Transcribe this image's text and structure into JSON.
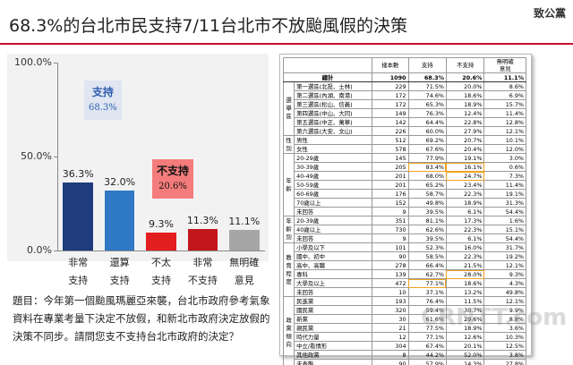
{
  "title": "68.3%的台北市民支持7/11台北市不放颱風假的決策",
  "logo": "致公黨",
  "watermark": "CRNTT.com",
  "question": "題目：今年第一個颱風瑪麗亞來襲，台北市政府參考氣象資料在專業考量下決定不放假，和新北市政府決定放假的決策不同步。請問您支不支持台北市政府的決定？",
  "chart_data": {
    "type": "bar",
    "categories": [
      "非常\n支持",
      "還算\n支持",
      "不太\n支持",
      "非常\n不支持",
      "無明確\n意見"
    ],
    "values": [
      36.3,
      32.0,
      9.3,
      11.3,
      11.1
    ],
    "value_labels": [
      "36.3%",
      "32.0%",
      "9.3%",
      "11.3%",
      "11.1%"
    ],
    "colors": [
      "#1f3c7c",
      "#2f78c4",
      "#e31e1e",
      "#c2161c",
      "#a6a6a6"
    ],
    "ylim": [
      0,
      100
    ],
    "yticks": [
      {
        "value": 0,
        "label": "0.0%"
      },
      {
        "value": 50,
        "label": "50.0%"
      },
      {
        "value": 100,
        "label": "100.0%"
      }
    ],
    "grid": false,
    "annotations": [
      {
        "label": "支持",
        "value": "68.3%"
      },
      {
        "label": "不支持",
        "value": "20.6%"
      }
    ]
  },
  "table": {
    "header": [
      "樣本數",
      "支持",
      "不支持",
      "無明確\n意見"
    ],
    "total": [
      "總計",
      "1090",
      "68.3%",
      "20.6%",
      "11.1%"
    ],
    "groups": [
      {
        "label": "選舉區",
        "rows": [
          [
            "第一選區(北投、士林)",
            "229",
            "71.5%",
            "20.0%",
            "8.6%"
          ],
          [
            "第二選區(內湖、南港)",
            "172",
            "74.6%",
            "18.6%",
            "6.9%"
          ],
          [
            "第三選區(松山、信義)",
            "172",
            "65.3%",
            "18.9%",
            "15.7%"
          ],
          [
            "第四選區(中山、大同)",
            "149",
            "76.3%",
            "12.4%",
            "11.4%"
          ],
          [
            "第五選區(中正、萬華)",
            "142",
            "64.4%",
            "22.8%",
            "12.8%"
          ],
          [
            "第六選區(大安、文山)",
            "226",
            "60.0%",
            "27.9%",
            "12.1%"
          ]
        ]
      },
      {
        "label": "性別",
        "rows": [
          [
            "男性",
            "512",
            "69.2%",
            "20.7%",
            "10.1%"
          ],
          [
            "女性",
            "578",
            "67.6%",
            "20.4%",
            "12.0%"
          ]
        ]
      },
      {
        "label": "年齡",
        "rows": [
          [
            "20-29歲",
            "145",
            "77.9%",
            "19.1%",
            "3.0%"
          ],
          [
            "30-39歲",
            "205",
            "83.4%",
            "16.1%",
            "0.6%"
          ],
          [
            "40-49歲",
            "201",
            "68.0%",
            "24.7%",
            "7.3%"
          ],
          [
            "50-59歲",
            "201",
            "65.2%",
            "23.4%",
            "11.4%"
          ],
          [
            "60-69歲",
            "176",
            "58.7%",
            "22.3%",
            "19.1%"
          ],
          [
            "70歲以上",
            "152",
            "49.8%",
            "18.9%",
            "31.3%"
          ],
          [
            "未回答",
            "9",
            "39.5%",
            "6.1%",
            "54.4%"
          ]
        ]
      },
      {
        "label": "年齡別",
        "rows": [
          [
            "20-39歲",
            "351",
            "81.1%",
            "17.3%",
            "1.6%"
          ],
          [
            "40歲以上",
            "730",
            "62.6%",
            "22.3%",
            "15.1%"
          ],
          [
            "未回答",
            "9",
            "39.5%",
            "6.1%",
            "54.4%"
          ]
        ]
      },
      {
        "label": "教育程度",
        "rows": [
          [
            "小學及以下",
            "101",
            "52.3%",
            "16.0%",
            "31.7%"
          ],
          [
            "國中、初中",
            "90",
            "58.5%",
            "22.3%",
            "19.2%"
          ],
          [
            "高中、高職",
            "278",
            "66.4%",
            "21.5%",
            "12.1%"
          ],
          [
            "專科",
            "139",
            "62.7%",
            "28.0%",
            "9.3%"
          ],
          [
            "大學及以上",
            "472",
            "77.1%",
            "18.6%",
            "4.3%"
          ],
          [
            "未回答",
            "10",
            "37.1%",
            "13.2%",
            "49.8%"
          ]
        ]
      },
      {
        "label": "政黨傾向",
        "rows": [
          [
            "民進黨",
            "193",
            "76.4%",
            "11.5%",
            "12.1%"
          ],
          [
            "國民黨",
            "320",
            "59.4%",
            "30.7%",
            "9.9%"
          ],
          [
            "新黨",
            "30",
            "61.6%",
            "29.6%",
            "8.8%"
          ],
          [
            "親民黨",
            "21",
            "77.5%",
            "18.9%",
            "3.6%"
          ],
          [
            "時代力量",
            "12",
            "77.1%",
            "12.6%",
            "10.3%"
          ],
          [
            "中立/看情形",
            "304",
            "67.4%",
            "20.1%",
            "12.5%"
          ],
          [
            "其他政黨",
            "8",
            "44.2%",
            "52.0%",
            "3.8%"
          ],
          [
            "未表態",
            "90",
            "57.9%",
            "14.3%",
            "27.8%"
          ]
        ]
      }
    ]
  }
}
